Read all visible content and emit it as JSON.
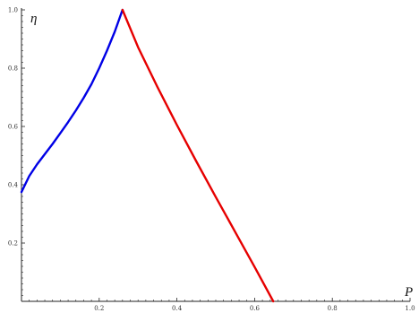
{
  "chart_data": {
    "type": "line",
    "xlabel": "P",
    "ylabel": "η",
    "xlim": [
      0,
      1.0
    ],
    "ylim": [
      0,
      1.0
    ],
    "grid": false,
    "x_ticks": [
      "0.2",
      "0.4",
      "0.6",
      "0.8",
      "1.0"
    ],
    "y_ticks": [
      "0.2",
      "0.4",
      "0.6",
      "0.8",
      "1.0"
    ],
    "series": [
      {
        "color": "#0000e6",
        "x": [
          0.0,
          0.02,
          0.04,
          0.06,
          0.08,
          0.1,
          0.12,
          0.14,
          0.16,
          0.18,
          0.2,
          0.22,
          0.24,
          0.26
        ],
        "y": [
          0.375,
          0.43,
          0.47,
          0.505,
          0.54,
          0.577,
          0.615,
          0.655,
          0.698,
          0.745,
          0.8,
          0.86,
          0.925,
          1.0
        ]
      },
      {
        "color": "#e60000",
        "x": [
          0.26,
          0.3,
          0.35,
          0.4,
          0.45,
          0.5,
          0.55,
          0.6,
          0.648
        ],
        "y": [
          1.0,
          0.872,
          0.735,
          0.605,
          0.48,
          0.358,
          0.238,
          0.118,
          0.0
        ]
      }
    ]
  }
}
